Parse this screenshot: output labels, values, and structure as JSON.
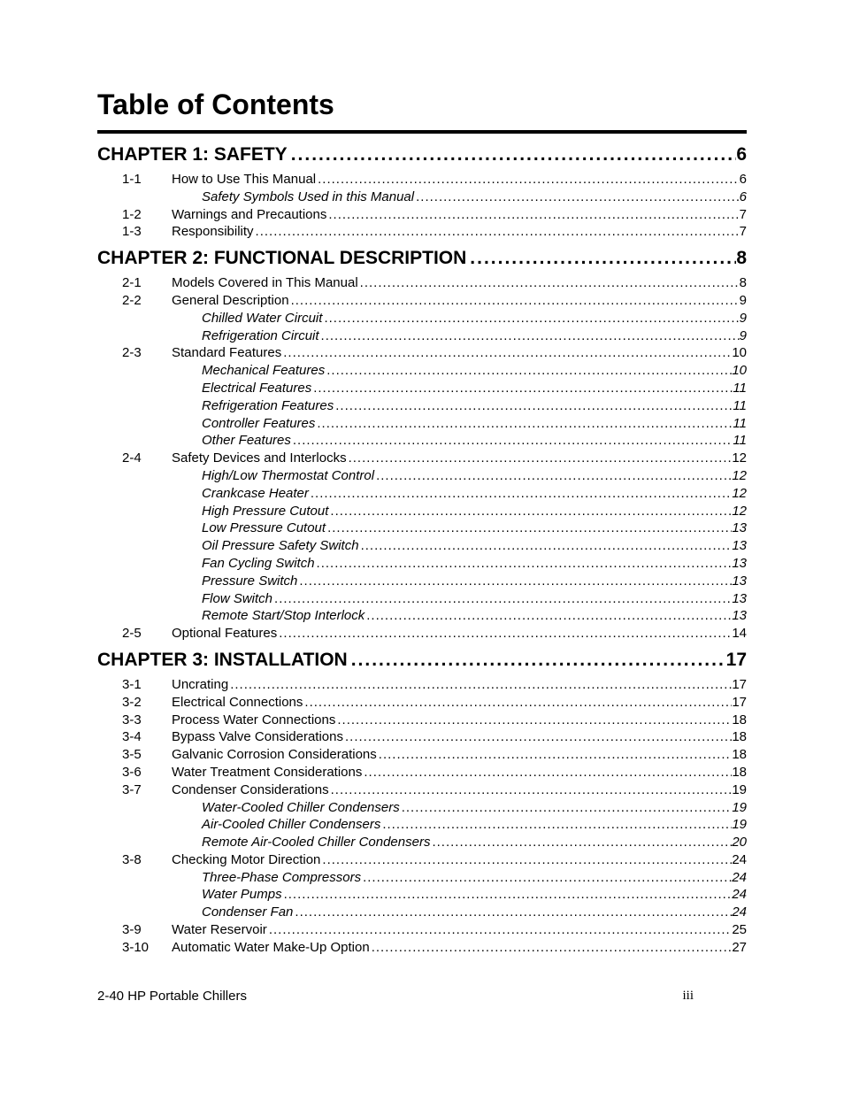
{
  "title": "Table of Contents",
  "chapters": [
    {
      "title": "CHAPTER 1: SAFETY",
      "page": "6",
      "sections": [
        {
          "num": "1-1",
          "title": "How to Use This Manual",
          "page": "6",
          "sub": false
        },
        {
          "num": "",
          "title": "Safety Symbols Used in this Manual",
          "page": "6",
          "sub": true
        },
        {
          "num": "1-2",
          "title": "Warnings and Precautions",
          "page": "7",
          "sub": false
        },
        {
          "num": "1-3",
          "title": "Responsibility",
          "page": "7",
          "sub": false
        }
      ]
    },
    {
      "title": "CHAPTER 2: FUNCTIONAL DESCRIPTION",
      "page": "8",
      "sections": [
        {
          "num": "2-1",
          "title": "Models Covered in This Manual",
          "page": "8",
          "sub": false
        },
        {
          "num": "2-2",
          "title": "General Description",
          "page": "9",
          "sub": false
        },
        {
          "num": "",
          "title": "Chilled Water Circuit",
          "page": "9",
          "sub": true
        },
        {
          "num": "",
          "title": "Refrigeration Circuit",
          "page": "9",
          "sub": true
        },
        {
          "num": "2-3",
          "title": "Standard Features",
          "page": "10",
          "sub": false
        },
        {
          "num": "",
          "title": "Mechanical Features",
          "page": "10",
          "sub": true
        },
        {
          "num": "",
          "title": "Electrical Features",
          "page": "11",
          "sub": true
        },
        {
          "num": "",
          "title": "Refrigeration Features",
          "page": "11",
          "sub": true
        },
        {
          "num": "",
          "title": "Controller Features",
          "page": "11",
          "sub": true
        },
        {
          "num": "",
          "title": "Other Features",
          "page": "11",
          "sub": true
        },
        {
          "num": "2-4",
          "title": "Safety Devices and Interlocks",
          "page": "12",
          "sub": false
        },
        {
          "num": "",
          "title": "High/Low Thermostat Control",
          "page": "12",
          "sub": true
        },
        {
          "num": "",
          "title": "Crankcase Heater",
          "page": "12",
          "sub": true
        },
        {
          "num": "",
          "title": "High Pressure Cutout",
          "page": "12",
          "sub": true
        },
        {
          "num": "",
          "title": "Low Pressure Cutout",
          "page": "13",
          "sub": true
        },
        {
          "num": "",
          "title": "Oil Pressure Safety Switch",
          "page": "13",
          "sub": true
        },
        {
          "num": "",
          "title": "Fan Cycling Switch",
          "page": "13",
          "sub": true
        },
        {
          "num": "",
          "title": "Pressure Switch",
          "page": "13",
          "sub": true
        },
        {
          "num": "",
          "title": "Flow Switch",
          "page": "13",
          "sub": true
        },
        {
          "num": "",
          "title": "Remote Start/Stop Interlock",
          "page": "13",
          "sub": true
        },
        {
          "num": "2-5",
          "title": "Optional Features",
          "page": "14",
          "sub": false
        }
      ]
    },
    {
      "title": "CHAPTER 3: INSTALLATION",
      "page": "17",
      "sections": [
        {
          "num": "3-1",
          "title": "Uncrating",
          "page": "17",
          "sub": false
        },
        {
          "num": "3-2",
          "title": "Electrical Connections",
          "page": "17",
          "sub": false
        },
        {
          "num": "3-3",
          "title": "Process Water Connections",
          "page": "18",
          "sub": false
        },
        {
          "num": "3-4",
          "title": "Bypass Valve Considerations",
          "page": "18",
          "sub": false
        },
        {
          "num": "3-5",
          "title": "Galvanic Corrosion Considerations",
          "page": "18",
          "sub": false
        },
        {
          "num": "3-6",
          "title": "Water Treatment Considerations",
          "page": "18",
          "sub": false
        },
        {
          "num": "3-7",
          "title": "Condenser Considerations",
          "page": "19",
          "sub": false
        },
        {
          "num": "",
          "title": "Water-Cooled Chiller Condensers",
          "page": "19",
          "sub": true
        },
        {
          "num": "",
          "title": "Air-Cooled Chiller Condensers",
          "page": "19",
          "sub": true
        },
        {
          "num": "",
          "title": "Remote Air-Cooled Chiller Condensers",
          "page": "20",
          "sub": true
        },
        {
          "num": "3-8",
          "title": "Checking Motor Direction",
          "page": "24",
          "sub": false
        },
        {
          "num": "",
          "title": "Three-Phase Compressors",
          "page": "24",
          "sub": true
        },
        {
          "num": "",
          "title": "Water Pumps",
          "page": "24",
          "sub": true
        },
        {
          "num": "",
          "title": "Condenser Fan",
          "page": "24",
          "sub": true
        },
        {
          "num": "3-9",
          "title": "Water Reservoir",
          "page": "25",
          "sub": false
        },
        {
          "num": "3-10",
          "title": "Automatic Water Make-Up Option",
          "page": "27",
          "sub": false
        }
      ]
    }
  ],
  "footer": {
    "left": "2-40 HP Portable Chillers",
    "right": "iii"
  }
}
